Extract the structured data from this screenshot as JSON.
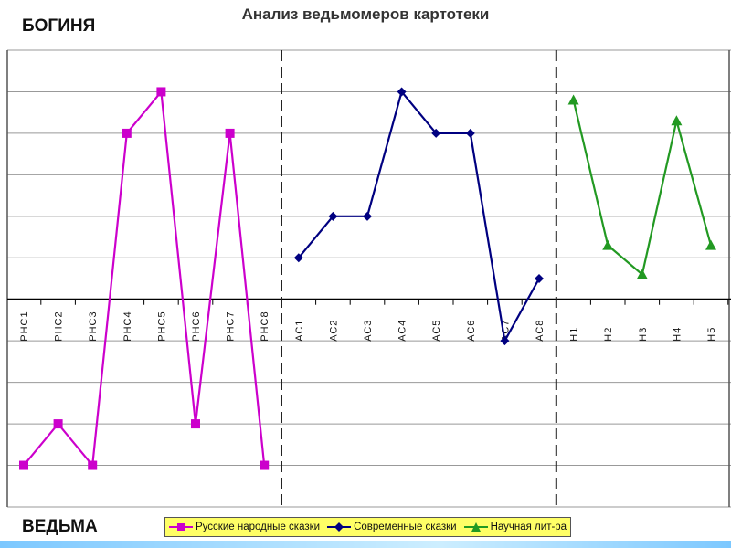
{
  "chart_data": {
    "type": "line",
    "title": "Анализ ведьмомеров картотеки",
    "top_label": "БОГИНЯ",
    "bottom_label": "ВЕДЬМА",
    "categories": [
      "РНС1",
      "РНС2",
      "РНС3",
      "РНС4",
      "РНС5",
      "РНС6",
      "РНС7",
      "РНС8",
      "АС1",
      "АС2",
      "АС3",
      "АС4",
      "АС5",
      "АС6",
      "АС7",
      "АС8",
      "Н1",
      "Н2",
      "Н3",
      "Н4",
      "Н5"
    ],
    "ylim": [
      -5,
      6
    ],
    "grid": true,
    "series": [
      {
        "name": "Русские народные сказки",
        "color": "#cc00cc",
        "marker": "square",
        "x": [
          "РНС1",
          "РНС2",
          "РНС3",
          "РНС4",
          "РНС5",
          "РНС6",
          "РНС7",
          "РНС8"
        ],
        "values": [
          -4,
          -3,
          -4,
          4,
          5,
          -3,
          4,
          -4
        ]
      },
      {
        "name": "Современные сказки",
        "color": "#000080",
        "marker": "diamond",
        "x": [
          "АС1",
          "АС2",
          "АС3",
          "АС4",
          "АС5",
          "АС6",
          "АС7",
          "АС8"
        ],
        "values": [
          1,
          2,
          2,
          5,
          4,
          4,
          -1,
          0.5
        ]
      },
      {
        "name": "Научная лит-ра",
        "color": "#229922",
        "marker": "triangle",
        "x": [
          "Н1",
          "Н2",
          "Н3",
          "Н4",
          "Н5"
        ],
        "values": [
          4.8,
          1.3,
          0.6,
          4.3,
          1.3
        ]
      }
    ],
    "legend_position": "bottom"
  }
}
